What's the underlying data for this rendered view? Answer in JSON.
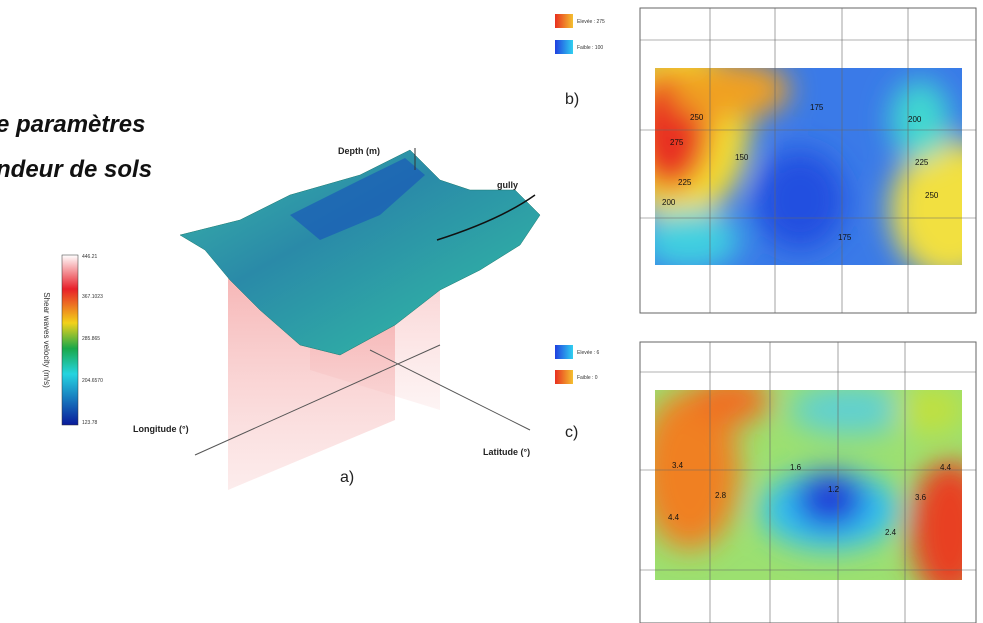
{
  "header": {
    "title_lines": [
      "e paramètres",
      "ndeur de sols"
    ]
  },
  "figure_a": {
    "label": "a)",
    "colorbar_title": "Shear waves velocity (m/s)",
    "colorbar_ticks": [
      "446.21",
      "367.1023",
      "285.865",
      "204.6570",
      "123.78"
    ],
    "depth_label": "Depth (m)",
    "gully_label": "gully",
    "longitude_label": "Longitude (°)",
    "latitude_label": "Latitude (°)"
  },
  "figure_b": {
    "label": "b)",
    "legend_high": "Elevée : 275",
    "legend_low": "Faible : 100",
    "contour_labels": [
      "275",
      "250",
      "225",
      "200",
      "175",
      "150",
      "175",
      "200",
      "225",
      "250"
    ]
  },
  "figure_c": {
    "label": "c)",
    "legend_high": "Elevée : 6",
    "legend_low": "Faible : 0",
    "contour_labels": [
      "3.4",
      "4.4",
      "2.8",
      "1.6",
      "1.2",
      "2.4",
      "3.6",
      "4.4"
    ]
  }
}
